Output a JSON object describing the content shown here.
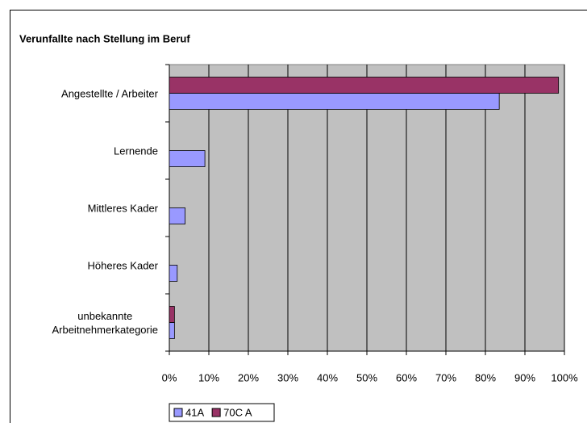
{
  "chart_data": {
    "type": "bar",
    "orientation": "horizontal",
    "title": "Verunfallte nach Stellung im Beruf",
    "categories": [
      "Angestellte / Arbeiter",
      "Lernende",
      "Mittleres Kader",
      "Höheres Kader",
      "unbekannte\nArbeitnehmerkategorie"
    ],
    "series": [
      {
        "name": "41A",
        "color": "#9999ff",
        "values": [
          83.5,
          9,
          4,
          2,
          1.3
        ]
      },
      {
        "name": "70C A",
        "color": "#993366",
        "values": [
          98.5,
          0,
          0,
          0,
          1.3
        ]
      }
    ],
    "xlim": [
      0,
      100
    ],
    "xticks": [
      {
        "value": 0,
        "label": "0%"
      },
      {
        "value": 10,
        "label": "10%"
      },
      {
        "value": 20,
        "label": "20%"
      },
      {
        "value": 30,
        "label": "30%"
      },
      {
        "value": 40,
        "label": "40%"
      },
      {
        "value": 50,
        "label": "50%"
      },
      {
        "value": 60,
        "label": "60%"
      },
      {
        "value": 70,
        "label": "70%"
      },
      {
        "value": 80,
        "label": "80%"
      },
      {
        "value": 90,
        "label": "90%"
      },
      {
        "value": 100,
        "label": "100%"
      }
    ],
    "grid": true,
    "legend": "bottom"
  }
}
